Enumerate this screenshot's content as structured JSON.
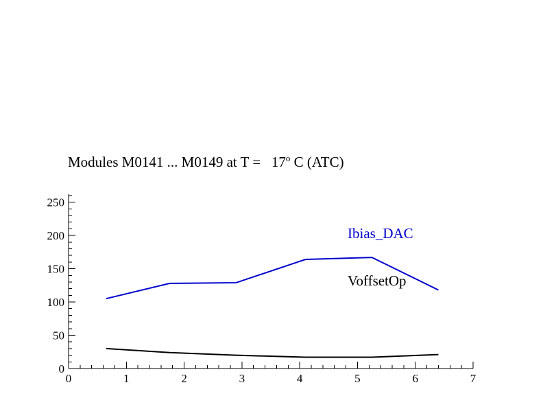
{
  "title": {
    "prefix": "Modules M0141 ... M0149 at T =   17",
    "sup": "o",
    "suffix": " C (ATC)"
  },
  "colors": {
    "background": "#ffffff",
    "axis": "#000000",
    "series_blue": "#0000cc",
    "series_black": "#000000"
  },
  "chart_data": {
    "type": "line",
    "title": "Modules M0141 ... M0149 at T = 17^o C (ATC)",
    "xlabel": "",
    "ylabel": "",
    "xlim": [
      0,
      7
    ],
    "ylim": [
      0,
      262
    ],
    "x_major_ticks": [
      0,
      1,
      2,
      3,
      4,
      5,
      6,
      7
    ],
    "x_tick_labels": [
      "0",
      "1",
      "2",
      "3",
      "4",
      "5",
      "6",
      "7"
    ],
    "x_minor_step": 0.2,
    "y_major_ticks": [
      0,
      50,
      100,
      150,
      200,
      250
    ],
    "y_tick_labels": [
      "0",
      "50",
      "100",
      "150",
      "200",
      "250"
    ],
    "y_minor_step": 10,
    "grid": false,
    "legend": {
      "position": "top-right-inside",
      "entries": [
        {
          "label": "Ibias_DAC",
          "color": "#0000cc"
        },
        {
          "label": "VoffsetOp",
          "color": "#000000"
        }
      ]
    },
    "series": [
      {
        "name": "Ibias_DAC",
        "color": "#0000cc",
        "x": [
          0.65,
          1.75,
          2.9,
          4.1,
          5.25,
          6.4
        ],
        "y": [
          105,
          128,
          129,
          164,
          167,
          118
        ]
      },
      {
        "name": "VoffsetOp",
        "color": "#000000",
        "x": [
          0.65,
          1.75,
          2.9,
          4.1,
          5.25,
          6.4
        ],
        "y": [
          30,
          24,
          20,
          17,
          17,
          21
        ]
      }
    ]
  }
}
